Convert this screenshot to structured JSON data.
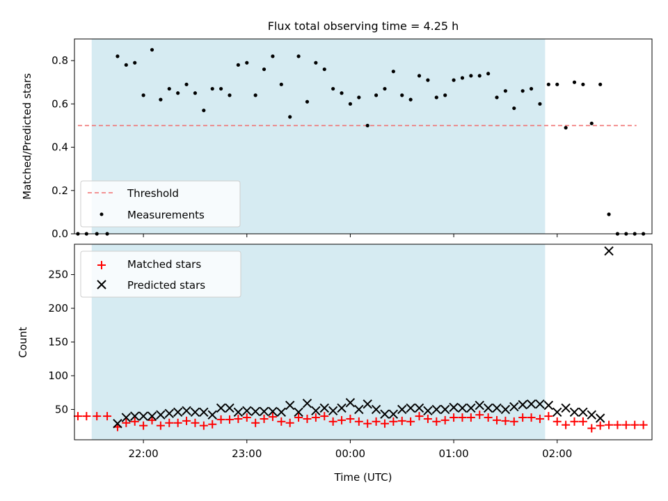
{
  "colors": {
    "threshold": "#f07070",
    "measurements": "#000000",
    "matched": "#ff0000",
    "predicted": "#000000",
    "band": "#add8e6"
  },
  "chart_data": [
    {
      "type": "scatter",
      "title": "Flux total observing time = 4.25 h",
      "ylabel": "Matched/Predicted stars",
      "xlim": [
        "21:20",
        "02:55"
      ],
      "ylim": [
        0,
        0.9
      ],
      "yticks": [
        0.0,
        0.2,
        0.4,
        0.6,
        0.8
      ],
      "ytick_labels": [
        "0.0",
        "0.2",
        "0.4",
        "0.6",
        "0.8"
      ],
      "grid": false,
      "legend_position": "lower-left",
      "shaded_interval": [
        "21:30",
        "01:53"
      ],
      "threshold": {
        "name": "Threshold",
        "y": 0.5,
        "x_range": [
          "21:22",
          "02:46"
        ]
      },
      "series": [
        {
          "name": "Measurements",
          "points": [
            [
              "21:22",
              0.0
            ],
            [
              "21:27",
              0.0
            ],
            [
              "21:33",
              0.0
            ],
            [
              "21:39",
              0.0
            ],
            [
              "21:45",
              0.82
            ],
            [
              "21:50",
              0.78
            ],
            [
              "21:55",
              0.79
            ],
            [
              "22:00",
              0.64
            ],
            [
              "22:05",
              0.85
            ],
            [
              "22:10",
              0.62
            ],
            [
              "22:15",
              0.67
            ],
            [
              "22:20",
              0.65
            ],
            [
              "22:25",
              0.69
            ],
            [
              "22:30",
              0.65
            ],
            [
              "22:35",
              0.57
            ],
            [
              "22:40",
              0.67
            ],
            [
              "22:45",
              0.67
            ],
            [
              "22:50",
              0.64
            ],
            [
              "22:55",
              0.78
            ],
            [
              "23:00",
              0.79
            ],
            [
              "23:05",
              0.64
            ],
            [
              "23:10",
              0.76
            ],
            [
              "23:15",
              0.82
            ],
            [
              "23:20",
              0.69
            ],
            [
              "23:25",
              0.54
            ],
            [
              "23:30",
              0.82
            ],
            [
              "23:35",
              0.61
            ],
            [
              "23:40",
              0.79
            ],
            [
              "23:45",
              0.76
            ],
            [
              "23:50",
              0.67
            ],
            [
              "23:55",
              0.65
            ],
            [
              "00:00",
              0.6
            ],
            [
              "00:05",
              0.63
            ],
            [
              "00:10",
              0.5
            ],
            [
              "00:15",
              0.64
            ],
            [
              "00:20",
              0.67
            ],
            [
              "00:25",
              0.75
            ],
            [
              "00:30",
              0.64
            ],
            [
              "00:35",
              0.62
            ],
            [
              "00:40",
              0.73
            ],
            [
              "00:45",
              0.71
            ],
            [
              "00:50",
              0.63
            ],
            [
              "00:55",
              0.64
            ],
            [
              "01:00",
              0.71
            ],
            [
              "01:05",
              0.72
            ],
            [
              "01:10",
              0.73
            ],
            [
              "01:15",
              0.73
            ],
            [
              "01:20",
              0.74
            ],
            [
              "01:25",
              0.63
            ],
            [
              "01:30",
              0.66
            ],
            [
              "01:35",
              0.58
            ],
            [
              "01:40",
              0.66
            ],
            [
              "01:45",
              0.67
            ],
            [
              "01:50",
              0.6
            ],
            [
              "01:55",
              0.69
            ],
            [
              "02:00",
              0.69
            ],
            [
              "02:05",
              0.49
            ],
            [
              "02:10",
              0.7
            ],
            [
              "02:15",
              0.69
            ],
            [
              "02:20",
              0.51
            ],
            [
              "02:25",
              0.69
            ],
            [
              "02:30",
              0.09
            ],
            [
              "02:35",
              0.0
            ],
            [
              "02:40",
              0.0
            ],
            [
              "02:45",
              0.0
            ],
            [
              "02:50",
              0.0
            ]
          ]
        }
      ]
    },
    {
      "type": "scatter",
      "xlabel": "Time (UTC)",
      "ylabel": "Count",
      "xlim": [
        "21:20",
        "02:55"
      ],
      "ylim": [
        5,
        295
      ],
      "yticks": [
        50,
        100,
        150,
        200,
        250
      ],
      "ytick_labels": [
        "50",
        "100",
        "150",
        "200",
        "250"
      ],
      "xticks": [
        "22:00",
        "23:00",
        "00:00",
        "01:00",
        "02:00"
      ],
      "grid": false,
      "legend_position": "upper-left",
      "shaded_interval": [
        "21:30",
        "01:53"
      ],
      "series": [
        {
          "name": "Matched stars",
          "marker": "plus",
          "points": [
            [
              "21:22",
              40
            ],
            [
              "21:27",
              40
            ],
            [
              "21:33",
              40
            ],
            [
              "21:39",
              40
            ],
            [
              "21:45",
              24
            ],
            [
              "21:50",
              30
            ],
            [
              "21:55",
              32
            ],
            [
              "22:00",
              26
            ],
            [
              "22:05",
              34
            ],
            [
              "22:10",
              26
            ],
            [
              "22:15",
              30
            ],
            [
              "22:20",
              30
            ],
            [
              "22:25",
              33
            ],
            [
              "22:30",
              30
            ],
            [
              "22:35",
              26
            ],
            [
              "22:40",
              28
            ],
            [
              "22:45",
              35
            ],
            [
              "22:50",
              35
            ],
            [
              "22:55",
              36
            ],
            [
              "23:00",
              38
            ],
            [
              "23:05",
              30
            ],
            [
              "23:10",
              36
            ],
            [
              "23:15",
              39
            ],
            [
              "23:20",
              32
            ],
            [
              "23:25",
              30
            ],
            [
              "23:30",
              38
            ],
            [
              "23:35",
              36
            ],
            [
              "23:40",
              38
            ],
            [
              "23:45",
              40
            ],
            [
              "23:50",
              32
            ],
            [
              "23:55",
              34
            ],
            [
              "00:00",
              36
            ],
            [
              "00:05",
              32
            ],
            [
              "00:10",
              29
            ],
            [
              "00:15",
              32
            ],
            [
              "00:20",
              29
            ],
            [
              "00:25",
              32
            ],
            [
              "00:30",
              33
            ],
            [
              "00:35",
              32
            ],
            [
              "00:40",
              40
            ],
            [
              "00:45",
              36
            ],
            [
              "00:50",
              32
            ],
            [
              "00:55",
              34
            ],
            [
              "01:00",
              38
            ],
            [
              "01:05",
              38
            ],
            [
              "01:10",
              38
            ],
            [
              "01:15",
              42
            ],
            [
              "01:20",
              38
            ],
            [
              "01:25",
              34
            ],
            [
              "01:30",
              33
            ],
            [
              "01:35",
              32
            ],
            [
              "01:40",
              38
            ],
            [
              "01:45",
              38
            ],
            [
              "01:50",
              36
            ],
            [
              "01:55",
              40
            ],
            [
              "02:00",
              32
            ],
            [
              "02:05",
              27
            ],
            [
              "02:10",
              32
            ],
            [
              "02:15",
              32
            ],
            [
              "02:20",
              22
            ],
            [
              "02:25",
              26
            ],
            [
              "02:30",
              27
            ],
            [
              "02:35",
              27
            ],
            [
              "02:40",
              27
            ],
            [
              "02:45",
              27
            ],
            [
              "02:50",
              27
            ]
          ]
        },
        {
          "name": "Predicted stars",
          "marker": "x",
          "points": [
            [
              "21:45",
              29
            ],
            [
              "21:50",
              38
            ],
            [
              "21:55",
              40
            ],
            [
              "22:00",
              40
            ],
            [
              "22:05",
              40
            ],
            [
              "22:10",
              42
            ],
            [
              "22:15",
              44
            ],
            [
              "22:20",
              46
            ],
            [
              "22:25",
              48
            ],
            [
              "22:30",
              46
            ],
            [
              "22:35",
              46
            ],
            [
              "22:40",
              42
            ],
            [
              "22:45",
              52
            ],
            [
              "22:50",
              52
            ],
            [
              "22:55",
              46
            ],
            [
              "23:00",
              48
            ],
            [
              "23:05",
              47
            ],
            [
              "23:10",
              47
            ],
            [
              "23:15",
              47
            ],
            [
              "23:20",
              46
            ],
            [
              "23:25",
              56
            ],
            [
              "23:30",
              46
            ],
            [
              "23:35",
              59
            ],
            [
              "23:40",
              48
            ],
            [
              "23:45",
              52
            ],
            [
              "23:50",
              48
            ],
            [
              "23:55",
              52
            ],
            [
              "00:00",
              60
            ],
            [
              "00:05",
              50
            ],
            [
              "00:10",
              58
            ],
            [
              "00:15",
              50
            ],
            [
              "00:20",
              43
            ],
            [
              "00:25",
              43
            ],
            [
              "00:30",
              50
            ],
            [
              "00:35",
              52
            ],
            [
              "00:40",
              52
            ],
            [
              "00:45",
              48
            ],
            [
              "00:50",
              50
            ],
            [
              "00:55",
              50
            ],
            [
              "01:00",
              53
            ],
            [
              "01:05",
              52
            ],
            [
              "01:10",
              52
            ],
            [
              "01:15",
              56
            ],
            [
              "01:20",
              52
            ],
            [
              "01:25",
              52
            ],
            [
              "01:30",
              50
            ],
            [
              "01:35",
              54
            ],
            [
              "01:40",
              57
            ],
            [
              "01:45",
              58
            ],
            [
              "01:50",
              58
            ],
            [
              "01:55",
              56
            ],
            [
              "02:00",
              46
            ],
            [
              "02:05",
              52
            ],
            [
              "02:10",
              46
            ],
            [
              "02:15",
              46
            ],
            [
              "02:20",
              42
            ],
            [
              "02:25",
              37
            ],
            [
              "02:30",
              285
            ]
          ]
        }
      ]
    }
  ]
}
